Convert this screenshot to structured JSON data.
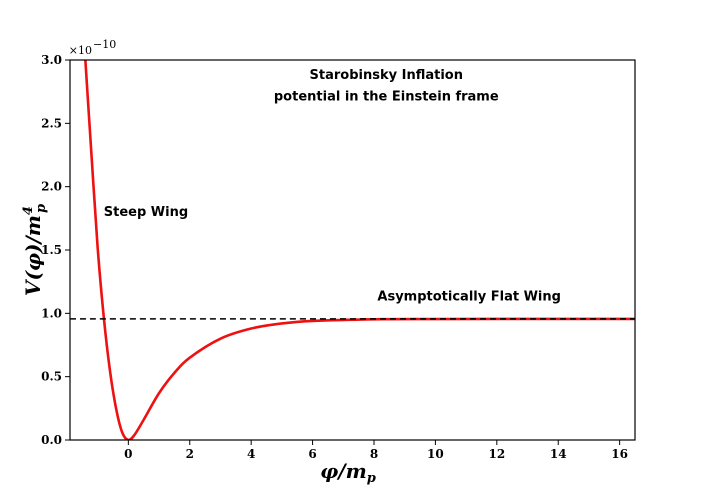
{
  "chart_data": {
    "type": "line",
    "title": "",
    "xlabel": "φ/m",
    "xlabel_sub": "p",
    "ylabel": "V(φ)/m",
    "ylabel_sup": "4",
    "ylabel_sub": "p",
    "y_scale_base": "×10",
    "y_scale_exp": "−10",
    "xlim": [
      -1.9,
      16.5
    ],
    "ylim": [
      0,
      3.0
    ],
    "x_ticks": [
      0,
      2,
      4,
      6,
      8,
      10,
      12,
      14,
      16
    ],
    "y_ticks": [
      0.0,
      0.5,
      1.0,
      1.5,
      2.0,
      2.5,
      3.0
    ],
    "x_tick_labels": [
      "0",
      "2",
      "4",
      "6",
      "8",
      "10",
      "12",
      "14",
      "16"
    ],
    "y_tick_labels": [
      "0.0",
      "0.5",
      "1.0",
      "1.5",
      "2.0",
      "2.5",
      "3.0"
    ],
    "grid": false,
    "series": [
      {
        "color": "#ee1111",
        "style": "solid",
        "x": [
          -1.4,
          -1.2,
          -1.0,
          -0.8,
          -0.6,
          -0.4,
          -0.2,
          0.0,
          0.2,
          0.5,
          1.0,
          1.5,
          2.0,
          3.0,
          4.0,
          5.0,
          6.0,
          8.0,
          10.0,
          12.0,
          14.0,
          16.5
        ],
        "y": [
          3.0,
          2.25,
          1.52,
          0.97,
          0.55,
          0.25,
          0.06,
          0.0,
          0.04,
          0.16,
          0.37,
          0.53,
          0.65,
          0.8,
          0.88,
          0.92,
          0.94,
          0.953,
          0.955,
          0.956,
          0.956,
          0.956
        ]
      },
      {
        "color": "#000000",
        "style": "dashed",
        "x": [
          -1.9,
          16.5
        ],
        "y": [
          0.956,
          0.956
        ]
      }
    ],
    "annotations": [
      {
        "text": "Starobinsky Inflation",
        "x": 8.4,
        "y": 2.85
      },
      {
        "text": "potential in the Einstein frame",
        "x": 8.4,
        "y": 2.68
      },
      {
        "text": "Steep Wing",
        "x": -0.8,
        "y": 1.77
      },
      {
        "text": "Asymptotically Flat Wing",
        "x": 11.1,
        "y": 1.1
      }
    ]
  }
}
